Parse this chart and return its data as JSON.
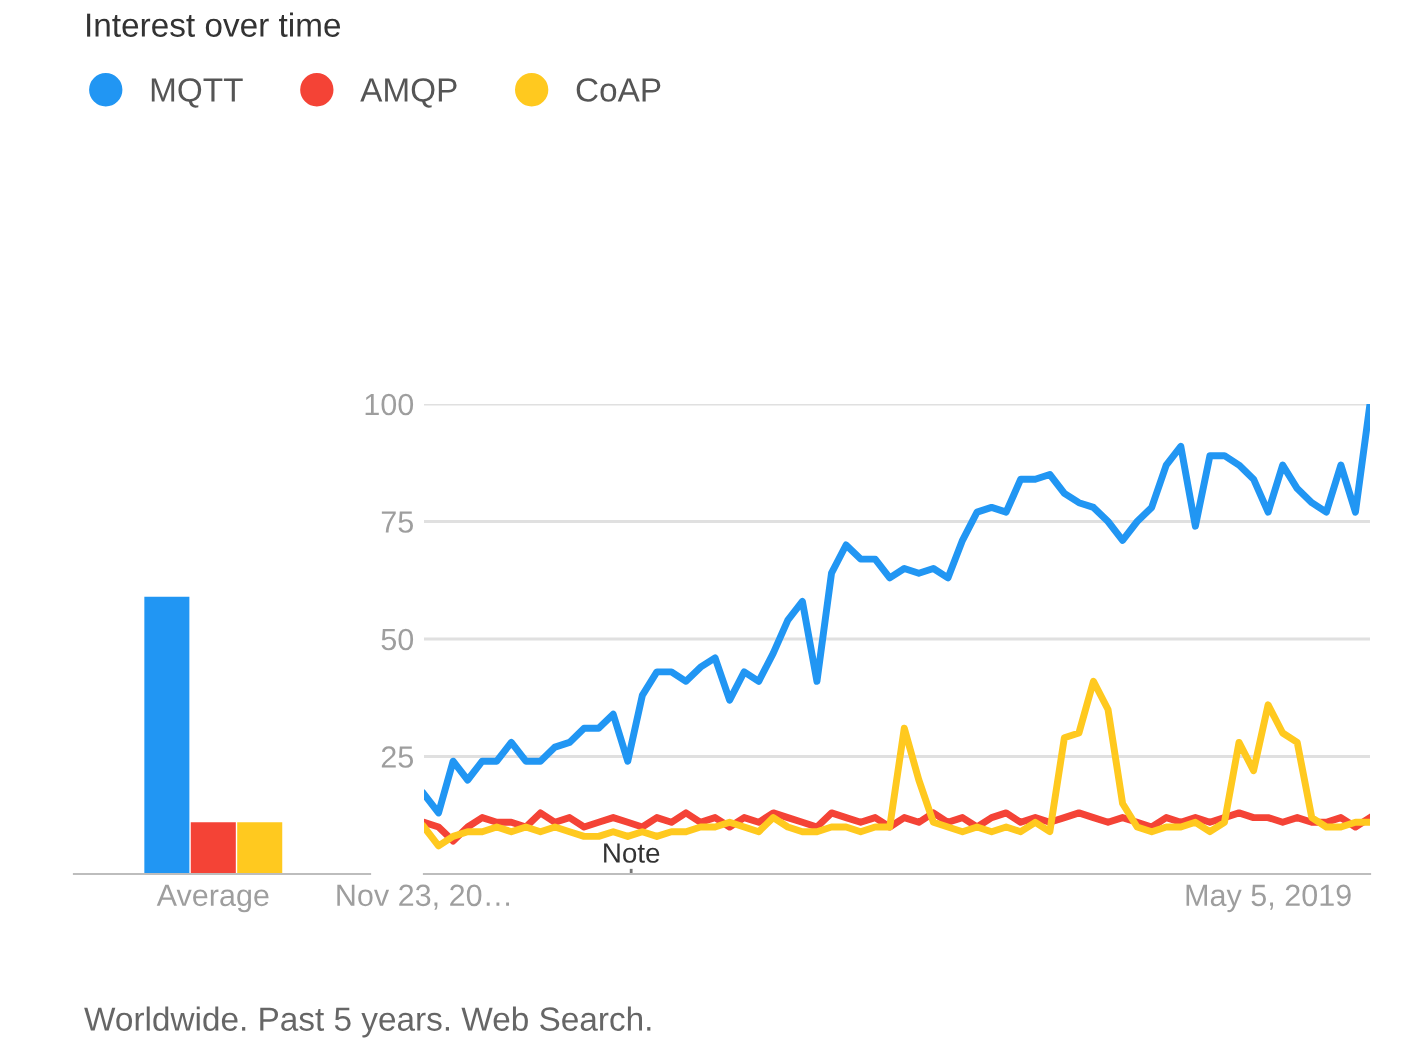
{
  "chart_data": [
    {
      "type": "bar",
      "title": "Interest over time",
      "annotations": [
        "Worldwide. Past 5 years. Web Search."
      ],
      "categories": [
        "Average"
      ],
      "ylim": [
        0,
        100
      ],
      "tick_labels": "x",
      "grid": false,
      "legend": false,
      "series": [
        {
          "color": "#2196f3",
          "values": [
            59
          ]
        },
        {
          "color": "#f44336",
          "values": [
            11
          ]
        },
        {
          "color": "#ffc91f",
          "values": [
            11
          ]
        }
      ]
    },
    {
      "type": "line",
      "legend": "top left",
      "grid": "y",
      "marker": "none",
      "line_style": "solid",
      "x": [
        "2014-11-23",
        "2014-12-21",
        "2015-01-18",
        "2015-02-15",
        "2015-03-15",
        "2015-04-12",
        "2015-05-10",
        "2015-06-07",
        "2015-07-05",
        "2015-08-02",
        "2015-08-30",
        "2015-09-27",
        "2015-10-25",
        "2015-11-22",
        "2015-12-20",
        "2016-01-17",
        "2016-02-14",
        "2016-03-13",
        "2016-04-10",
        "2016-05-08",
        "2016-06-05",
        "2016-07-03",
        "2016-07-31",
        "2016-08-28",
        "2016-09-25",
        "2016-10-23",
        "2016-11-20",
        "2016-12-18",
        "2017-01-15",
        "2017-02-12",
        "2017-03-12",
        "2017-04-09",
        "2017-05-07",
        "2017-06-04",
        "2017-07-02",
        "2017-07-30",
        "2017-08-27",
        "2017-09-24",
        "2017-10-22",
        "2017-11-19",
        "2017-12-17",
        "2018-01-14",
        "2018-02-11",
        "2018-03-11",
        "2018-04-08",
        "2018-05-06",
        "2018-06-03",
        "2018-07-01",
        "2018-07-29",
        "2018-08-26",
        "2018-09-23",
        "2018-10-21",
        "2018-11-18",
        "2018-12-16",
        "2019-01-13",
        "2019-02-10",
        "2019-03-10",
        "2019-04-07",
        "2019-05-05",
        "2019-06-02",
        "2019-06-30",
        "2019-07-28",
        "2019-08-25",
        "2019-09-22",
        "2019-10-20",
        "2019-11-17"
      ],
      "xlim": [
        "2014-11-23",
        "2019-11-17"
      ],
      "xticks": [
        {
          "value": "2014-11-23",
          "label": "Nov 23, 20…"
        },
        {
          "value": "2019-05-05",
          "label": "May 5, 2019"
        }
      ],
      "ylim": [
        0,
        100
      ],
      "yticks": [
        25,
        50,
        75,
        100
      ],
      "series": [
        {
          "name": "MQTT",
          "color": "#2196f3",
          "values": [
            17,
            13,
            24,
            20,
            24,
            24,
            28,
            24,
            24,
            27,
            28,
            31,
            31,
            34,
            24,
            38,
            43,
            43,
            41,
            44,
            46,
            37,
            43,
            41,
            47,
            54,
            58,
            41,
            64,
            70,
            67,
            67,
            63,
            65,
            64,
            65,
            63,
            71,
            77,
            78,
            77,
            84,
            84,
            85,
            81,
            79,
            78,
            75,
            71,
            75,
            78,
            87,
            91,
            74,
            89,
            89,
            87,
            84,
            77,
            87,
            82,
            79,
            77,
            87,
            77,
            100
          ]
        },
        {
          "name": "AMQP",
          "color": "#f44336",
          "values": [
            11,
            10,
            7,
            10,
            12,
            11,
            11,
            10,
            13,
            11,
            12,
            10,
            11,
            12,
            11,
            10,
            12,
            11,
            13,
            11,
            12,
            10,
            12,
            11,
            13,
            12,
            11,
            10,
            13,
            12,
            11,
            12,
            10,
            12,
            11,
            13,
            11,
            12,
            10,
            12,
            13,
            11,
            12,
            11,
            12,
            13,
            12,
            11,
            12,
            11,
            10,
            12,
            11,
            12,
            11,
            12,
            13,
            12,
            12,
            11,
            12,
            11,
            11,
            12,
            10,
            12
          ]
        },
        {
          "name": "CoAP",
          "color": "#ffc91f",
          "values": [
            10,
            6,
            8,
            9,
            9,
            10,
            9,
            10,
            9,
            10,
            9,
            8,
            8,
            9,
            8,
            9,
            8,
            9,
            9,
            10,
            10,
            11,
            10,
            9,
            12,
            10,
            9,
            9,
            10,
            10,
            9,
            10,
            10,
            31,
            20,
            11,
            10,
            9,
            10,
            9,
            10,
            9,
            11,
            9,
            29,
            30,
            41,
            35,
            15,
            10,
            9,
            10,
            10,
            11,
            9,
            11,
            28,
            22,
            36,
            30,
            28,
            12,
            10,
            10,
            11,
            11
          ]
        }
      ],
      "annotations": [
        "Note"
      ]
    }
  ]
}
